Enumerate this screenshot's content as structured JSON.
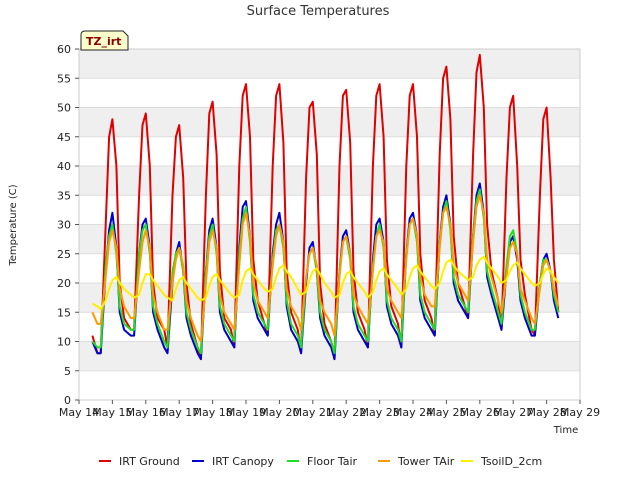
{
  "chart_data": {
    "type": "line",
    "title": "Surface Temperatures",
    "xlabel": "Time",
    "ylabel": "Temperature (C)",
    "badge": "TZ_irt",
    "ylim": [
      0,
      60
    ],
    "yticks": [
      0,
      5,
      10,
      15,
      20,
      25,
      30,
      35,
      40,
      45,
      50,
      55,
      60
    ],
    "xlim": [
      14,
      29
    ],
    "xticks": [
      "May 14",
      "May 15",
      "May 16",
      "May 17",
      "May 18",
      "May 19",
      "May 20",
      "May 21",
      "May 22",
      "May 23",
      "May 24",
      "May 25",
      "May 26",
      "May 27",
      "May 28",
      "May 29"
    ],
    "grid": true,
    "legend_position": "bottom",
    "series": [
      {
        "name": "IRT Ground",
        "color": "#e00000",
        "x": [
          14.4,
          14.55,
          14.65,
          14.8,
          14.9,
          15.0,
          15.12,
          15.22,
          15.35,
          15.55,
          15.65,
          15.8,
          15.9,
          16.0,
          16.12,
          16.22,
          16.35,
          16.55,
          16.65,
          16.8,
          16.9,
          17.0,
          17.12,
          17.22,
          17.35,
          17.55,
          17.65,
          17.8,
          17.9,
          18.0,
          18.12,
          18.22,
          18.35,
          18.55,
          18.65,
          18.8,
          18.9,
          19.0,
          19.12,
          19.22,
          19.35,
          19.55,
          19.65,
          19.8,
          19.9,
          20.0,
          20.12,
          20.22,
          20.35,
          20.55,
          20.65,
          20.8,
          20.9,
          21.0,
          21.12,
          21.22,
          21.35,
          21.55,
          21.65,
          21.8,
          21.9,
          22.0,
          22.12,
          22.22,
          22.35,
          22.55,
          22.65,
          22.8,
          22.9,
          23.0,
          23.12,
          23.22,
          23.35,
          23.55,
          23.65,
          23.8,
          23.9,
          24.0,
          24.12,
          24.22,
          24.35,
          24.55,
          24.65,
          24.8,
          24.9,
          25.0,
          25.12,
          25.22,
          25.35,
          25.55,
          25.65,
          25.8,
          25.9,
          26.0,
          26.12,
          26.22,
          26.35,
          26.55,
          26.65,
          26.8,
          26.9,
          27.0,
          27.12,
          27.22,
          27.35,
          27.55,
          27.65,
          27.8,
          27.9,
          28.0,
          28.12,
          28.22,
          28.35
        ],
        "y": [
          11,
          8,
          8,
          30,
          45,
          48,
          40,
          20,
          14,
          12,
          12,
          35,
          47,
          49,
          40,
          20,
          14,
          12,
          9,
          35,
          45,
          47,
          38,
          20,
          13,
          9,
          7,
          35,
          49,
          51,
          42,
          22,
          14,
          12,
          9,
          40,
          52,
          54,
          45,
          24,
          17,
          13,
          11,
          40,
          52,
          54,
          44,
          22,
          15,
          12,
          8,
          38,
          50,
          51,
          42,
          20,
          13,
          10,
          7,
          40,
          52,
          53,
          44,
          22,
          15,
          12,
          9,
          40,
          52,
          54,
          45,
          24,
          16,
          13,
          9,
          40,
          52,
          54,
          45,
          25,
          17,
          14,
          11,
          42,
          55,
          57,
          48,
          28,
          20,
          16,
          14,
          42,
          56,
          59,
          50,
          30,
          22,
          17,
          12,
          38,
          50,
          52,
          40,
          24,
          18,
          12,
          11,
          35,
          48,
          50,
          38,
          24,
          15
        ]
      },
      {
        "name": "IRT Canopy",
        "color": "#0000cc",
        "x": [
          14.4,
          14.55,
          14.65,
          14.8,
          14.9,
          15.0,
          15.12,
          15.22,
          15.35,
          15.55,
          15.65,
          15.8,
          15.9,
          16.0,
          16.12,
          16.22,
          16.35,
          16.55,
          16.65,
          16.8,
          16.9,
          17.0,
          17.12,
          17.22,
          17.35,
          17.55,
          17.65,
          17.8,
          17.9,
          18.0,
          18.12,
          18.22,
          18.35,
          18.55,
          18.65,
          18.8,
          18.9,
          19.0,
          19.12,
          19.22,
          19.35,
          19.55,
          19.65,
          19.8,
          19.9,
          20.0,
          20.12,
          20.22,
          20.35,
          20.55,
          20.65,
          20.8,
          20.9,
          21.0,
          21.12,
          21.22,
          21.35,
          21.55,
          21.65,
          21.8,
          21.9,
          22.0,
          22.12,
          22.22,
          22.35,
          22.55,
          22.65,
          22.8,
          22.9,
          23.0,
          23.12,
          23.22,
          23.35,
          23.55,
          23.65,
          23.8,
          23.9,
          24.0,
          24.12,
          24.22,
          24.35,
          24.55,
          24.65,
          24.8,
          24.9,
          25.0,
          25.12,
          25.22,
          25.35,
          25.55,
          25.65,
          25.8,
          25.9,
          26.0,
          26.12,
          26.22,
          26.35,
          26.55,
          26.65,
          26.8,
          26.9,
          27.0,
          27.12,
          27.22,
          27.35,
          27.55,
          27.65,
          27.8,
          27.9,
          28.0,
          28.12,
          28.22,
          28.35
        ],
        "y": [
          10,
          8,
          8,
          22,
          29,
          32,
          26,
          15,
          12,
          11,
          11,
          25,
          30,
          31,
          26,
          15,
          12,
          9,
          8,
          20,
          25,
          27,
          22,
          14,
          11,
          8,
          7,
          22,
          29,
          31,
          26,
          15,
          12,
          10,
          9,
          26,
          33,
          34,
          28,
          17,
          14,
          12,
          11,
          25,
          30,
          32,
          27,
          16,
          12,
          10,
          8,
          20,
          26,
          27,
          22,
          14,
          11,
          9,
          7,
          22,
          28,
          29,
          25,
          15,
          12,
          10,
          9,
          24,
          30,
          31,
          27,
          16,
          13,
          11,
          9,
          25,
          31,
          32,
          28,
          17,
          14,
          12,
          11,
          27,
          33,
          35,
          30,
          20,
          17,
          15,
          14,
          28,
          35,
          37,
          32,
          21,
          18,
          14,
          12,
          22,
          27,
          28,
          24,
          17,
          14,
          11,
          11,
          20,
          24,
          25,
          22,
          17,
          14
        ]
      },
      {
        "name": "Floor Tair",
        "color": "#22dd22",
        "x": [
          14.4,
          14.55,
          14.65,
          14.8,
          14.9,
          15.0,
          15.12,
          15.22,
          15.35,
          15.55,
          15.65,
          15.8,
          15.9,
          16.0,
          16.12,
          16.22,
          16.35,
          16.55,
          16.65,
          16.8,
          16.9,
          17.0,
          17.12,
          17.22,
          17.35,
          17.55,
          17.65,
          17.8,
          17.9,
          18.0,
          18.12,
          18.22,
          18.35,
          18.55,
          18.65,
          18.8,
          18.9,
          19.0,
          19.12,
          19.22,
          19.35,
          19.55,
          19.65,
          19.8,
          19.9,
          20.0,
          20.12,
          20.22,
          20.35,
          20.55,
          20.65,
          20.8,
          20.9,
          21.0,
          21.12,
          21.22,
          21.35,
          21.55,
          21.65,
          21.8,
          21.9,
          22.0,
          22.12,
          22.22,
          22.35,
          22.55,
          22.65,
          22.8,
          22.9,
          23.0,
          23.12,
          23.22,
          23.35,
          23.55,
          23.65,
          23.8,
          23.9,
          24.0,
          24.12,
          24.22,
          24.35,
          24.55,
          24.65,
          24.8,
          24.9,
          25.0,
          25.12,
          25.22,
          25.35,
          25.55,
          25.65,
          25.8,
          25.9,
          26.0,
          26.12,
          26.22,
          26.35,
          26.55,
          26.65,
          26.8,
          26.9,
          27.0,
          27.12,
          27.22,
          27.35,
          27.55,
          27.65,
          27.8,
          27.9,
          28.0,
          28.12,
          28.22,
          28.35
        ],
        "y": [
          10,
          9,
          9,
          23,
          28,
          30,
          25,
          16,
          13,
          12,
          12,
          25,
          29,
          30,
          25,
          16,
          13,
          10,
          9,
          22,
          25,
          26,
          22,
          15,
          12,
          9,
          8,
          22,
          28,
          30,
          25,
          16,
          13,
          11,
          10,
          25,
          31,
          33,
          27,
          18,
          15,
          13,
          12,
          24,
          29,
          30,
          26,
          17,
          13,
          11,
          9,
          21,
          25,
          26,
          22,
          15,
          12,
          10,
          8,
          22,
          27,
          28,
          24,
          16,
          13,
          11,
          10,
          23,
          28,
          30,
          26,
          17,
          14,
          12,
          10,
          25,
          30,
          31,
          27,
          18,
          15,
          13,
          12,
          27,
          32,
          34,
          29,
          21,
          18,
          16,
          15,
          28,
          34,
          36,
          31,
          22,
          19,
          15,
          13,
          23,
          28,
          29,
          25,
          18,
          15,
          12,
          12,
          20,
          24,
          24,
          22,
          18,
          15
        ]
      },
      {
        "name": "Tower TAir",
        "color": "#ff9900",
        "x": [
          14.4,
          14.55,
          14.65,
          14.8,
          14.9,
          15.0,
          15.12,
          15.22,
          15.35,
          15.55,
          15.65,
          15.8,
          15.9,
          16.0,
          16.12,
          16.22,
          16.35,
          16.55,
          16.65,
          16.8,
          16.9,
          17.0,
          17.12,
          17.22,
          17.35,
          17.55,
          17.65,
          17.8,
          17.9,
          18.0,
          18.12,
          18.22,
          18.35,
          18.55,
          18.65,
          18.8,
          18.9,
          19.0,
          19.12,
          19.22,
          19.35,
          19.55,
          19.65,
          19.8,
          19.9,
          20.0,
          20.12,
          20.22,
          20.35,
          20.55,
          20.65,
          20.8,
          20.9,
          21.0,
          21.12,
          21.22,
          21.35,
          21.55,
          21.65,
          21.8,
          21.9,
          22.0,
          22.12,
          22.22,
          22.35,
          22.55,
          22.65,
          22.8,
          22.9,
          23.0,
          23.12,
          23.22,
          23.35,
          23.55,
          23.65,
          23.8,
          23.9,
          24.0,
          24.12,
          24.22,
          24.35,
          24.55,
          24.65,
          24.8,
          24.9,
          25.0,
          25.12,
          25.22,
          25.35,
          25.55,
          25.65,
          25.8,
          25.9,
          26.0,
          26.12,
          26.22,
          26.35,
          26.55,
          26.65,
          26.8,
          26.9,
          27.0,
          27.12,
          27.22,
          27.35,
          27.55,
          27.65,
          27.8,
          27.9,
          28.0,
          28.12,
          28.22,
          28.35
        ],
        "y": [
          15,
          13,
          13,
          21,
          27,
          29,
          26,
          19,
          16,
          14,
          14,
          22,
          27,
          29,
          26,
          18,
          15,
          12,
          12,
          20,
          24,
          26,
          23,
          17,
          14,
          11,
          10,
          20,
          27,
          29,
          26,
          18,
          15,
          13,
          12,
          23,
          30,
          32,
          28,
          20,
          17,
          15,
          14,
          23,
          28,
          30,
          27,
          19,
          16,
          14,
          12,
          21,
          25,
          26,
          23,
          17,
          15,
          13,
          11,
          21,
          27,
          28,
          25,
          18,
          16,
          14,
          13,
          22,
          28,
          29,
          27,
          19,
          17,
          15,
          14,
          24,
          30,
          31,
          28,
          21,
          18,
          16,
          16,
          26,
          32,
          33,
          30,
          23,
          20,
          18,
          17,
          27,
          33,
          35,
          32,
          24,
          21,
          17,
          15,
          21,
          26,
          27,
          25,
          19,
          17,
          14,
          13,
          19,
          23,
          24,
          22,
          19,
          16
        ]
      },
      {
        "name": "TsoilD_2cm",
        "color": "#ffee00",
        "x": [
          14.4,
          14.55,
          14.65,
          14.8,
          14.9,
          15.0,
          15.12,
          15.22,
          15.35,
          15.55,
          15.65,
          15.8,
          15.9,
          16.0,
          16.12,
          16.22,
          16.35,
          16.55,
          16.65,
          16.8,
          16.9,
          17.0,
          17.12,
          17.22,
          17.35,
          17.55,
          17.65,
          17.8,
          17.9,
          18.0,
          18.12,
          18.22,
          18.35,
          18.55,
          18.65,
          18.8,
          18.9,
          19.0,
          19.12,
          19.22,
          19.35,
          19.55,
          19.65,
          19.8,
          19.9,
          20.0,
          20.12,
          20.22,
          20.35,
          20.55,
          20.65,
          20.8,
          20.9,
          21.0,
          21.12,
          21.22,
          21.35,
          21.55,
          21.65,
          21.8,
          21.9,
          22.0,
          22.12,
          22.22,
          22.35,
          22.55,
          22.65,
          22.8,
          22.9,
          23.0,
          23.12,
          23.22,
          23.35,
          23.55,
          23.65,
          23.8,
          23.9,
          24.0,
          24.12,
          24.22,
          24.35,
          24.55,
          24.65,
          24.8,
          24.9,
          25.0,
          25.12,
          25.22,
          25.35,
          25.55,
          25.65,
          25.8,
          25.9,
          26.0,
          26.12,
          26.22,
          26.35,
          26.55,
          26.65,
          26.8,
          26.9,
          27.0,
          27.12,
          27.22,
          27.35,
          27.55,
          27.65,
          27.8,
          27.9,
          28.0,
          28.12,
          28.22,
          28.35
        ],
        "y": [
          16.5,
          16,
          15.5,
          17,
          19,
          20.5,
          21,
          20,
          19,
          18,
          17.5,
          18,
          20,
          21.5,
          21.5,
          20.5,
          19.5,
          18,
          17.5,
          17,
          19,
          20.5,
          21,
          20,
          19,
          17.5,
          17,
          17.5,
          19.5,
          21,
          21.5,
          20.5,
          19.5,
          18,
          17.5,
          18,
          20.5,
          22,
          22.5,
          21.5,
          20.5,
          19,
          18.5,
          19,
          21,
          22.5,
          23,
          22,
          21,
          19,
          18,
          18.5,
          20.5,
          22,
          22.5,
          21.5,
          20,
          18.5,
          17.5,
          18,
          20,
          21.5,
          22,
          21,
          20,
          18.5,
          17.5,
          18.5,
          20.5,
          22,
          22.5,
          21.5,
          20.5,
          19,
          18,
          19,
          21,
          22.5,
          23,
          22,
          21,
          19.5,
          19,
          20,
          22,
          23.5,
          24,
          23,
          22,
          21,
          20.5,
          21,
          23,
          24,
          24.5,
          23.5,
          22.5,
          21,
          20,
          20.5,
          22,
          23,
          23.5,
          22.5,
          21.5,
          20,
          19.5,
          20,
          21.5,
          22.5,
          22,
          21,
          20
        ]
      }
    ]
  }
}
